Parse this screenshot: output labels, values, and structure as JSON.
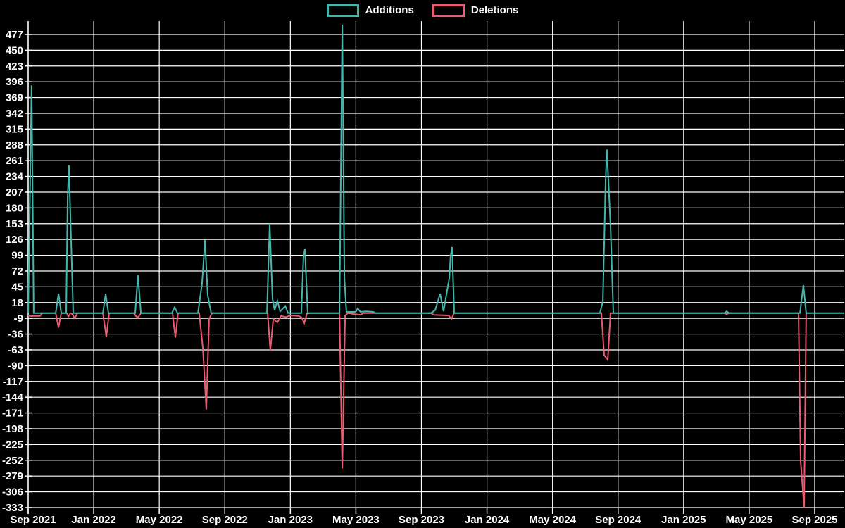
{
  "colors": {
    "background": "#000000",
    "grid": "#ffffff",
    "axis": "#ffffff",
    "text": "#ffffff",
    "additions": "#45b6ae",
    "deletions": "#ea5c72"
  },
  "legend": {
    "additions_label": "Additions",
    "deletions_label": "Deletions"
  },
  "chart_data": {
    "type": "line",
    "title": "",
    "xlabel": "",
    "ylabel": "",
    "grid": true,
    "legend_position": "top-center",
    "x_unit": "months_since_sep_2021",
    "ylim": [
      -333,
      477
    ],
    "y_tick_step": 27,
    "y_ticks": [
      477,
      450,
      423,
      396,
      369,
      342,
      315,
      288,
      261,
      234,
      207,
      180,
      153,
      126,
      99,
      72,
      45,
      18,
      -9,
      -36,
      -63,
      -90,
      -117,
      -144,
      -171,
      -198,
      -225,
      -252,
      -279,
      -306,
      -333
    ],
    "x_ticks": [
      {
        "label": "Sep 2021",
        "t": 0
      },
      {
        "label": "Jan 2022",
        "t": 4
      },
      {
        "label": "May 2022",
        "t": 8
      },
      {
        "label": "Sep 2022",
        "t": 12
      },
      {
        "label": "Jan 2023",
        "t": 16
      },
      {
        "label": "May 2023",
        "t": 20
      },
      {
        "label": "Sep 2023",
        "t": 24
      },
      {
        "label": "Jan 2024",
        "t": 28
      },
      {
        "label": "May 2024",
        "t": 32
      },
      {
        "label": "Sep 2024",
        "t": 36
      },
      {
        "label": "Jan 2025",
        "t": 40
      },
      {
        "label": "May 2025",
        "t": 44
      },
      {
        "label": "Sep 2025",
        "t": 48
      }
    ],
    "series": [
      {
        "name": "Additions",
        "color": "#45b6ae",
        "points": [
          [
            0.0,
            0
          ],
          [
            0.21,
            390
          ],
          [
            0.34,
            0
          ],
          [
            1.68,
            0
          ],
          [
            1.85,
            33
          ],
          [
            2.02,
            0
          ],
          [
            2.32,
            0
          ],
          [
            2.41,
            199
          ],
          [
            2.49,
            253
          ],
          [
            2.75,
            0
          ],
          [
            4.56,
            0
          ],
          [
            4.73,
            33
          ],
          [
            4.9,
            0
          ],
          [
            6.53,
            0
          ],
          [
            6.7,
            65
          ],
          [
            6.88,
            0
          ],
          [
            8.77,
            0
          ],
          [
            8.94,
            10
          ],
          [
            9.11,
            0
          ],
          [
            10.36,
            0
          ],
          [
            10.61,
            50
          ],
          [
            10.79,
            125
          ],
          [
            10.96,
            30
          ],
          [
            11.17,
            0
          ],
          [
            14.57,
            0
          ],
          [
            14.74,
            153
          ],
          [
            14.91,
            25
          ],
          [
            15.04,
            5
          ],
          [
            15.21,
            21
          ],
          [
            15.38,
            3
          ],
          [
            15.69,
            12
          ],
          [
            15.86,
            0
          ],
          [
            16.67,
            0
          ],
          [
            16.8,
            95
          ],
          [
            16.89,
            110
          ],
          [
            17.06,
            0
          ],
          [
            19.0,
            0
          ],
          [
            19.17,
            494
          ],
          [
            19.3,
            60
          ],
          [
            19.42,
            2
          ],
          [
            19.98,
            2
          ],
          [
            20.11,
            8
          ],
          [
            20.28,
            2
          ],
          [
            20.63,
            3
          ],
          [
            21.06,
            2
          ],
          [
            21.19,
            0
          ],
          [
            24.58,
            0
          ],
          [
            24.84,
            5
          ],
          [
            25.14,
            33
          ],
          [
            25.35,
            3
          ],
          [
            25.7,
            60
          ],
          [
            25.78,
            98
          ],
          [
            25.87,
            113
          ],
          [
            26.0,
            0
          ],
          [
            34.89,
            0
          ],
          [
            35.07,
            20
          ],
          [
            35.24,
            230
          ],
          [
            35.32,
            280
          ],
          [
            35.54,
            150
          ],
          [
            35.71,
            0
          ],
          [
            42.5,
            0
          ],
          [
            42.63,
            3
          ],
          [
            42.76,
            0
          ],
          [
            47.1,
            0
          ],
          [
            47.31,
            48
          ],
          [
            47.48,
            0
          ],
          [
            49.8,
            0
          ]
        ]
      },
      {
        "name": "Deletions",
        "color": "#ea5c72",
        "points": [
          [
            0.0,
            -5
          ],
          [
            0.73,
            -5
          ],
          [
            0.86,
            0
          ],
          [
            1.68,
            0
          ],
          [
            1.85,
            -25
          ],
          [
            2.02,
            0
          ],
          [
            2.36,
            0
          ],
          [
            2.45,
            -6
          ],
          [
            2.58,
            0
          ],
          [
            2.71,
            -2
          ],
          [
            2.84,
            -9
          ],
          [
            3.01,
            0
          ],
          [
            4.56,
            0
          ],
          [
            4.77,
            -41
          ],
          [
            4.94,
            0
          ],
          [
            6.45,
            0
          ],
          [
            6.57,
            -5
          ],
          [
            6.7,
            -8
          ],
          [
            6.88,
            0
          ],
          [
            8.81,
            0
          ],
          [
            8.98,
            -42
          ],
          [
            9.15,
            0
          ],
          [
            10.44,
            0
          ],
          [
            10.66,
            -60
          ],
          [
            10.87,
            -165
          ],
          [
            11.04,
            -10
          ],
          [
            11.22,
            0
          ],
          [
            14.61,
            0
          ],
          [
            14.78,
            -64
          ],
          [
            14.96,
            -10
          ],
          [
            15.21,
            -16
          ],
          [
            15.43,
            -5
          ],
          [
            15.73,
            -7
          ],
          [
            15.99,
            -4
          ],
          [
            16.5,
            -5
          ],
          [
            16.67,
            -7
          ],
          [
            16.85,
            -17
          ],
          [
            17.02,
            0
          ],
          [
            19.0,
            0
          ],
          [
            19.17,
            -266
          ],
          [
            19.34,
            -4
          ],
          [
            19.51,
            0
          ],
          [
            19.94,
            -2
          ],
          [
            20.28,
            -3
          ],
          [
            20.46,
            0
          ],
          [
            24.58,
            0
          ],
          [
            24.75,
            -3
          ],
          [
            25.65,
            -4
          ],
          [
            25.83,
            -10
          ],
          [
            26.0,
            0
          ],
          [
            34.98,
            0
          ],
          [
            35.15,
            -72
          ],
          [
            35.37,
            -80
          ],
          [
            35.54,
            0
          ],
          [
            42.5,
            0
          ],
          [
            42.63,
            -2
          ],
          [
            42.76,
            0
          ],
          [
            47.01,
            0
          ],
          [
            47.14,
            -253
          ],
          [
            47.35,
            -333
          ],
          [
            47.48,
            0
          ],
          [
            47.7,
            0
          ]
        ]
      }
    ]
  }
}
